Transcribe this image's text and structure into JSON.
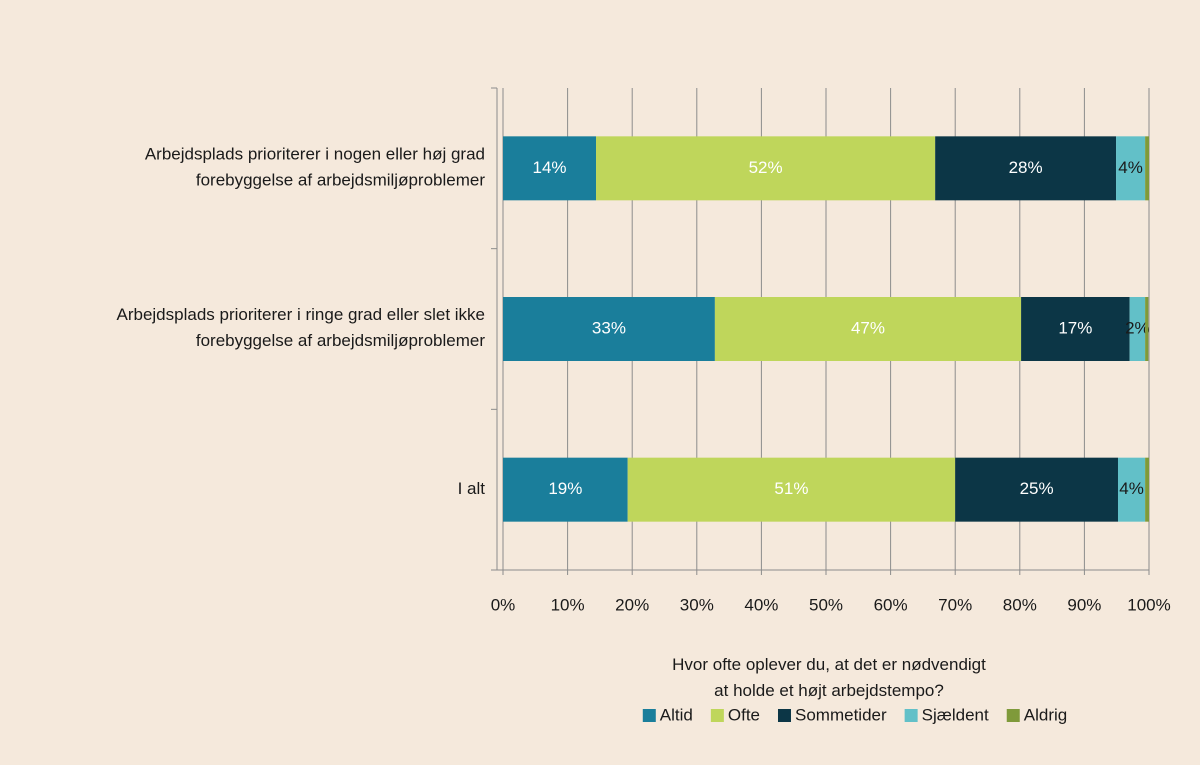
{
  "chart_data": {
    "type": "stacked_barh",
    "categories": [
      "Arbejdsplads prioriterer i nogen eller høj grad\nforebyggelse af arbejdsmiljøproblemer",
      "Arbejdsplads prioriterer i ringe grad eller slet ikke\nforebyggelse af arbejdsmiljøproblemer",
      "I alt"
    ],
    "series": [
      {
        "name": "Altid",
        "color": "#1a7e9b",
        "label_color": "#ffffff",
        "values": [
          14.4,
          32.8,
          19.3
        ],
        "value_labels": [
          "14%",
          "33%",
          "19%"
        ]
      },
      {
        "name": "Ofte",
        "color": "#bfd65b",
        "label_color": "#ffffff",
        "values": [
          52.5,
          47.4,
          50.7
        ],
        "value_labels": [
          "52%",
          "47%",
          "51%"
        ]
      },
      {
        "name": "Sommetider",
        "color": "#0c3646",
        "label_color": "#ffffff",
        "values": [
          28.0,
          16.8,
          25.2
        ],
        "value_labels": [
          "28%",
          "17%",
          "25%"
        ]
      },
      {
        "name": "Sjældent",
        "color": "#62c0c8",
        "label_color": "#1a1a1a",
        "values": [
          4.5,
          2.4,
          4.2
        ],
        "value_labels": [
          "4%",
          "2%",
          "4%"
        ]
      },
      {
        "name": "Aldrig",
        "color": "#7f9a3a",
        "label_color": "#1a1a1a",
        "values": [
          0.6,
          0.5,
          0.6
        ],
        "value_labels": [
          null,
          null,
          null
        ]
      }
    ],
    "xlabel": "Hvor ofte oplever du, at det er nødvendigt\nat holde et højt arbejdstempo?",
    "xlim": [
      0,
      100
    ],
    "xticks": [
      {
        "value": 0,
        "label": "0%"
      },
      {
        "value": 10,
        "label": "10%"
      },
      {
        "value": 20,
        "label": "20%"
      },
      {
        "value": 30,
        "label": "30%"
      },
      {
        "value": 40,
        "label": "40%"
      },
      {
        "value": 50,
        "label": "50%"
      },
      {
        "value": 60,
        "label": "60%"
      },
      {
        "value": 70,
        "label": "70%"
      },
      {
        "value": 80,
        "label": "80%"
      },
      {
        "value": 90,
        "label": "90%"
      },
      {
        "value": 100,
        "label": "100%"
      }
    ],
    "grid": true,
    "legend": "bottom"
  }
}
